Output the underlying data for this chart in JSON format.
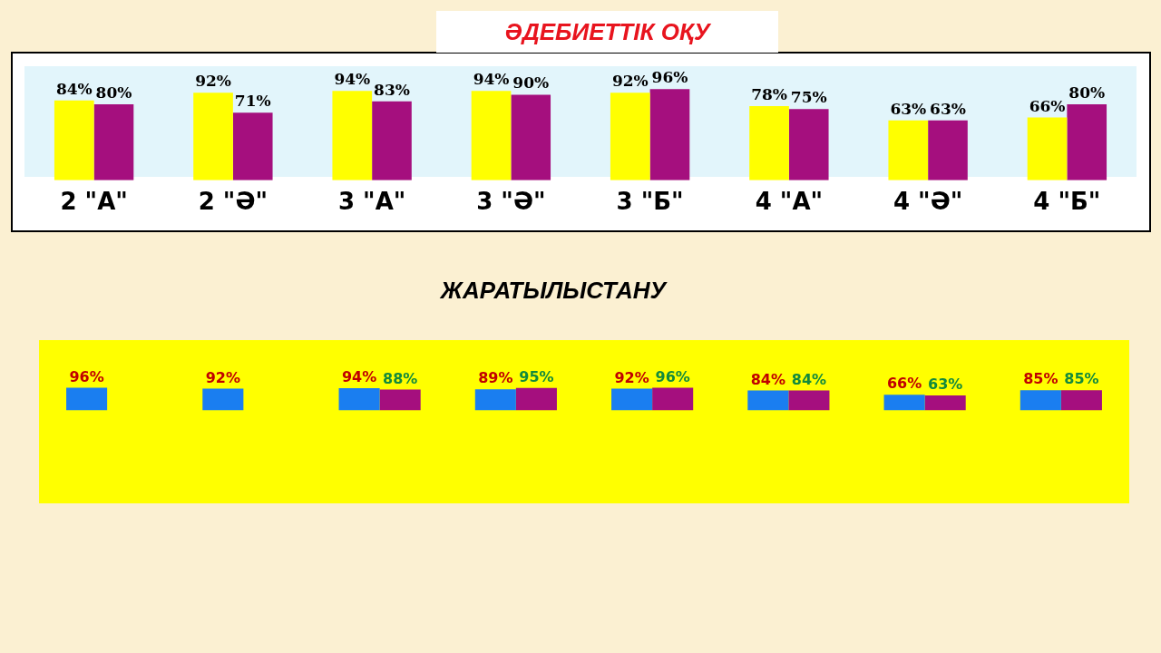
{
  "chart_data": [
    {
      "type": "bar",
      "title": "ӘДЕБИЕТТІК ОҚУ",
      "categories": [
        "2 \"А\"",
        "2 \"Ә\"",
        "3 \"А\"",
        "3 \"Ә\"",
        "3 \"Б\"",
        "4 \"А\"",
        "4 \"Ә\"",
        "4 \"Б\""
      ],
      "series": [
        {
          "color": "#ffff00",
          "values": [
            84,
            92,
            94,
            94,
            92,
            78,
            63,
            66
          ],
          "value_labels": [
            "84%",
            "92%",
            "94%",
            "94%",
            "92%",
            "78%",
            "63%",
            "66%"
          ]
        },
        {
          "color": "#a50f7e",
          "values": [
            80,
            71,
            83,
            90,
            96,
            75,
            63,
            80
          ],
          "value_labels": [
            "80%",
            "71%",
            "83%",
            "90%",
            "96%",
            "75%",
            "63%",
            "80%"
          ]
        }
      ],
      "ylim": [
        0,
        120
      ],
      "tick_labels": "x",
      "legend": false
    },
    {
      "type": "bar",
      "title": "ЖАРАТЫЛЫСТАНУ",
      "categories": [
        null,
        null,
        null,
        null,
        null,
        null,
        null,
        null
      ],
      "series": [
        {
          "color": "#1a7ef0",
          "values": [
            96,
            92,
            94,
            89,
            92,
            84,
            66,
            85
          ],
          "value_labels": [
            "96%",
            "92%",
            "94%",
            "89%",
            "92%",
            "84%",
            "66%",
            "85%"
          ]
        },
        {
          "color": "#a50f7e",
          "values": [
            null,
            null,
            88,
            95,
            96,
            84,
            63,
            85
          ],
          "value_labels": [
            null,
            null,
            "88%",
            "95%",
            "96%",
            "84%",
            "63%",
            "85%"
          ]
        }
      ],
      "ylim": [
        -400,
        300
      ],
      "tick_labels": false,
      "legend": false
    }
  ]
}
